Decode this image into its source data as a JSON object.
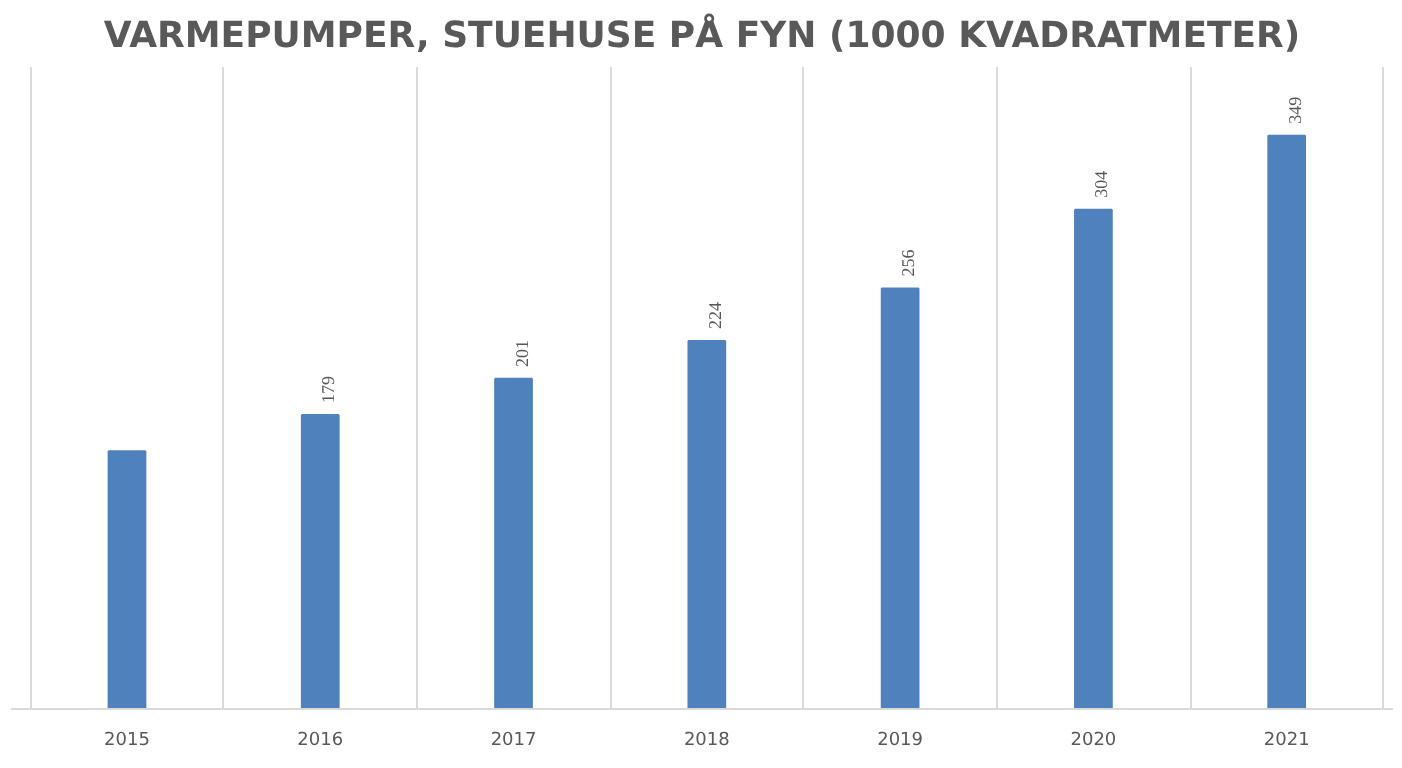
{
  "chart_data": {
    "type": "bar",
    "title": "VARMEPUMPER, STUEHUSE PÅ FYN (1000 KVADRATMETER)",
    "categories": [
      "2015",
      "2016",
      "2017",
      "2018",
      "2019",
      "2020",
      "2021"
    ],
    "values": [
      157,
      179,
      201,
      224,
      256,
      304,
      349
    ],
    "value_labels": [
      null,
      "179",
      "201",
      "224",
      "256",
      "304",
      "349"
    ],
    "color": "#4f81bd",
    "grid": "x"
  }
}
